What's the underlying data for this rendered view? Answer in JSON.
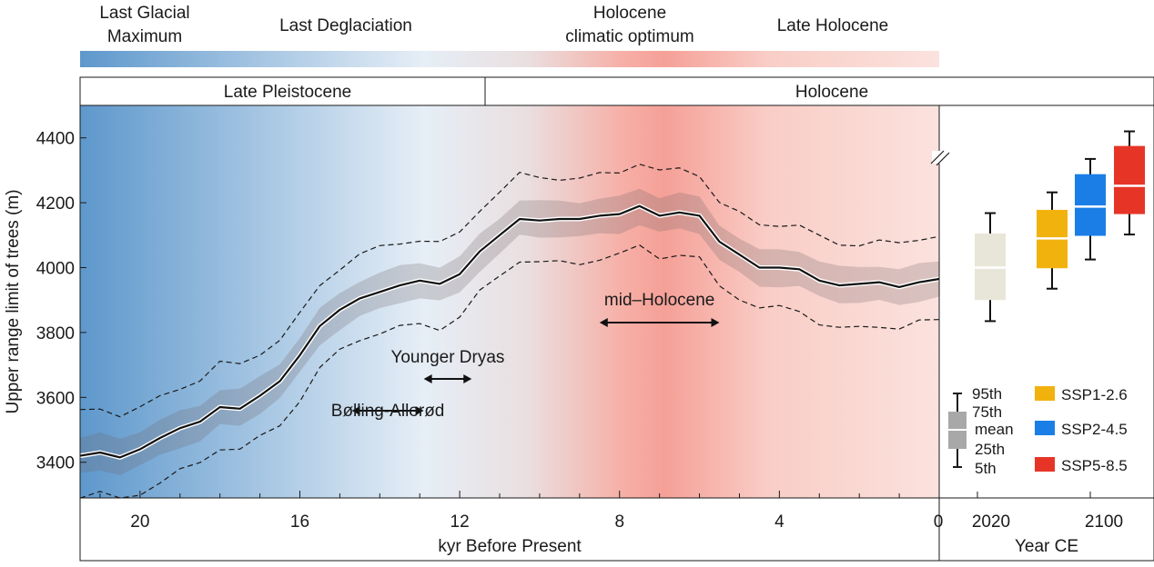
{
  "header": {
    "periods": [
      "Last Glacial",
      "Maximum",
      "Last Deglaciation",
      "Holocene",
      "climatic optimum",
      "Late Holocene"
    ],
    "epochs": [
      "Late Pleistocene",
      "Holocene"
    ]
  },
  "chart_data": {
    "type": "line",
    "title": "",
    "xlabel": "kyr Before Present",
    "ylabel": "Upper range limit of trees (m)",
    "xlim": [
      21.5,
      0
    ],
    "ylim": [
      3290,
      4500
    ],
    "x_ticks": [
      "20",
      "16",
      "12",
      "8",
      "4",
      "0"
    ],
    "y_ticks": [
      "3400",
      "3600",
      "3800",
      "4000",
      "4200",
      "4400"
    ],
    "series": [
      {
        "name": "mean",
        "x": [
          21.5,
          21.0,
          20.5,
          20.0,
          19.5,
          19.0,
          18.5,
          18.0,
          17.5,
          17.0,
          16.5,
          16.0,
          15.5,
          15.0,
          14.5,
          14.0,
          13.5,
          13.0,
          12.5,
          12.0,
          11.5,
          11.0,
          10.5,
          10.0,
          9.5,
          9.0,
          8.5,
          8.0,
          7.5,
          7.0,
          6.5,
          6.0,
          5.5,
          5.0,
          4.5,
          4.0,
          3.5,
          3.0,
          2.5,
          2.0,
          1.5,
          1.0,
          0.5,
          0.0
        ],
        "y": [
          3420,
          3430,
          3415,
          3440,
          3475,
          3505,
          3525,
          3570,
          3565,
          3605,
          3650,
          3730,
          3820,
          3870,
          3905,
          3925,
          3945,
          3960,
          3950,
          3980,
          4050,
          4100,
          4150,
          4145,
          4150,
          4150,
          4160,
          4165,
          4190,
          4160,
          4170,
          4160,
          4080,
          4040,
          4000,
          4000,
          3995,
          3960,
          3945,
          3950,
          3955,
          3940,
          3955,
          3965
        ]
      }
    ],
    "band_halfwidth_m": 55,
    "dashed_halfwidth_m": 130,
    "annotations": [
      {
        "text": "Bølling-Allerød",
        "from": 14.7,
        "to": 12.9
      },
      {
        "text": "Younger Dryas",
        "from": 12.9,
        "to": 11.7
      },
      {
        "text": "mid–Holocene",
        "from": 8.5,
        "to": 5.5
      }
    ],
    "future": {
      "xlabel": "Year CE",
      "x_ticks": [
        "2020",
        "2100"
      ],
      "boxes": [
        {
          "name": "2020",
          "color": "#e8e6d8",
          "p5": 3835,
          "p25": 3900,
          "mean": 4000,
          "p75": 4105,
          "p95": 4168
        },
        {
          "name": "SSP1-2.6",
          "color": "#f2b20e",
          "p5": 3935,
          "p25": 3998,
          "mean": 4090,
          "p75": 4178,
          "p95": 4232
        },
        {
          "name": "SSP2-4.5",
          "color": "#1a7ee6",
          "p5": 4025,
          "p25": 4098,
          "mean": 4188,
          "p75": 4288,
          "p95": 4335
        },
        {
          "name": "SSP5-8.5",
          "color": "#e63527",
          "p5": 4102,
          "p25": 4165,
          "mean": 4252,
          "p75": 4375,
          "p95": 4420
        }
      ]
    },
    "legend": {
      "stats": [
        "95th",
        "75th",
        "mean",
        "25th",
        "5th"
      ],
      "scenarios": [
        "SSP1-2.6",
        "SSP2-4.5",
        "SSP5-8.5"
      ]
    }
  },
  "colors": {
    "cold": "#5e98cc",
    "cool": "#e8eff6",
    "warm": "#f5a49a",
    "late": "#fbe1de",
    "band": "rgba(110,100,105,0.25)"
  }
}
